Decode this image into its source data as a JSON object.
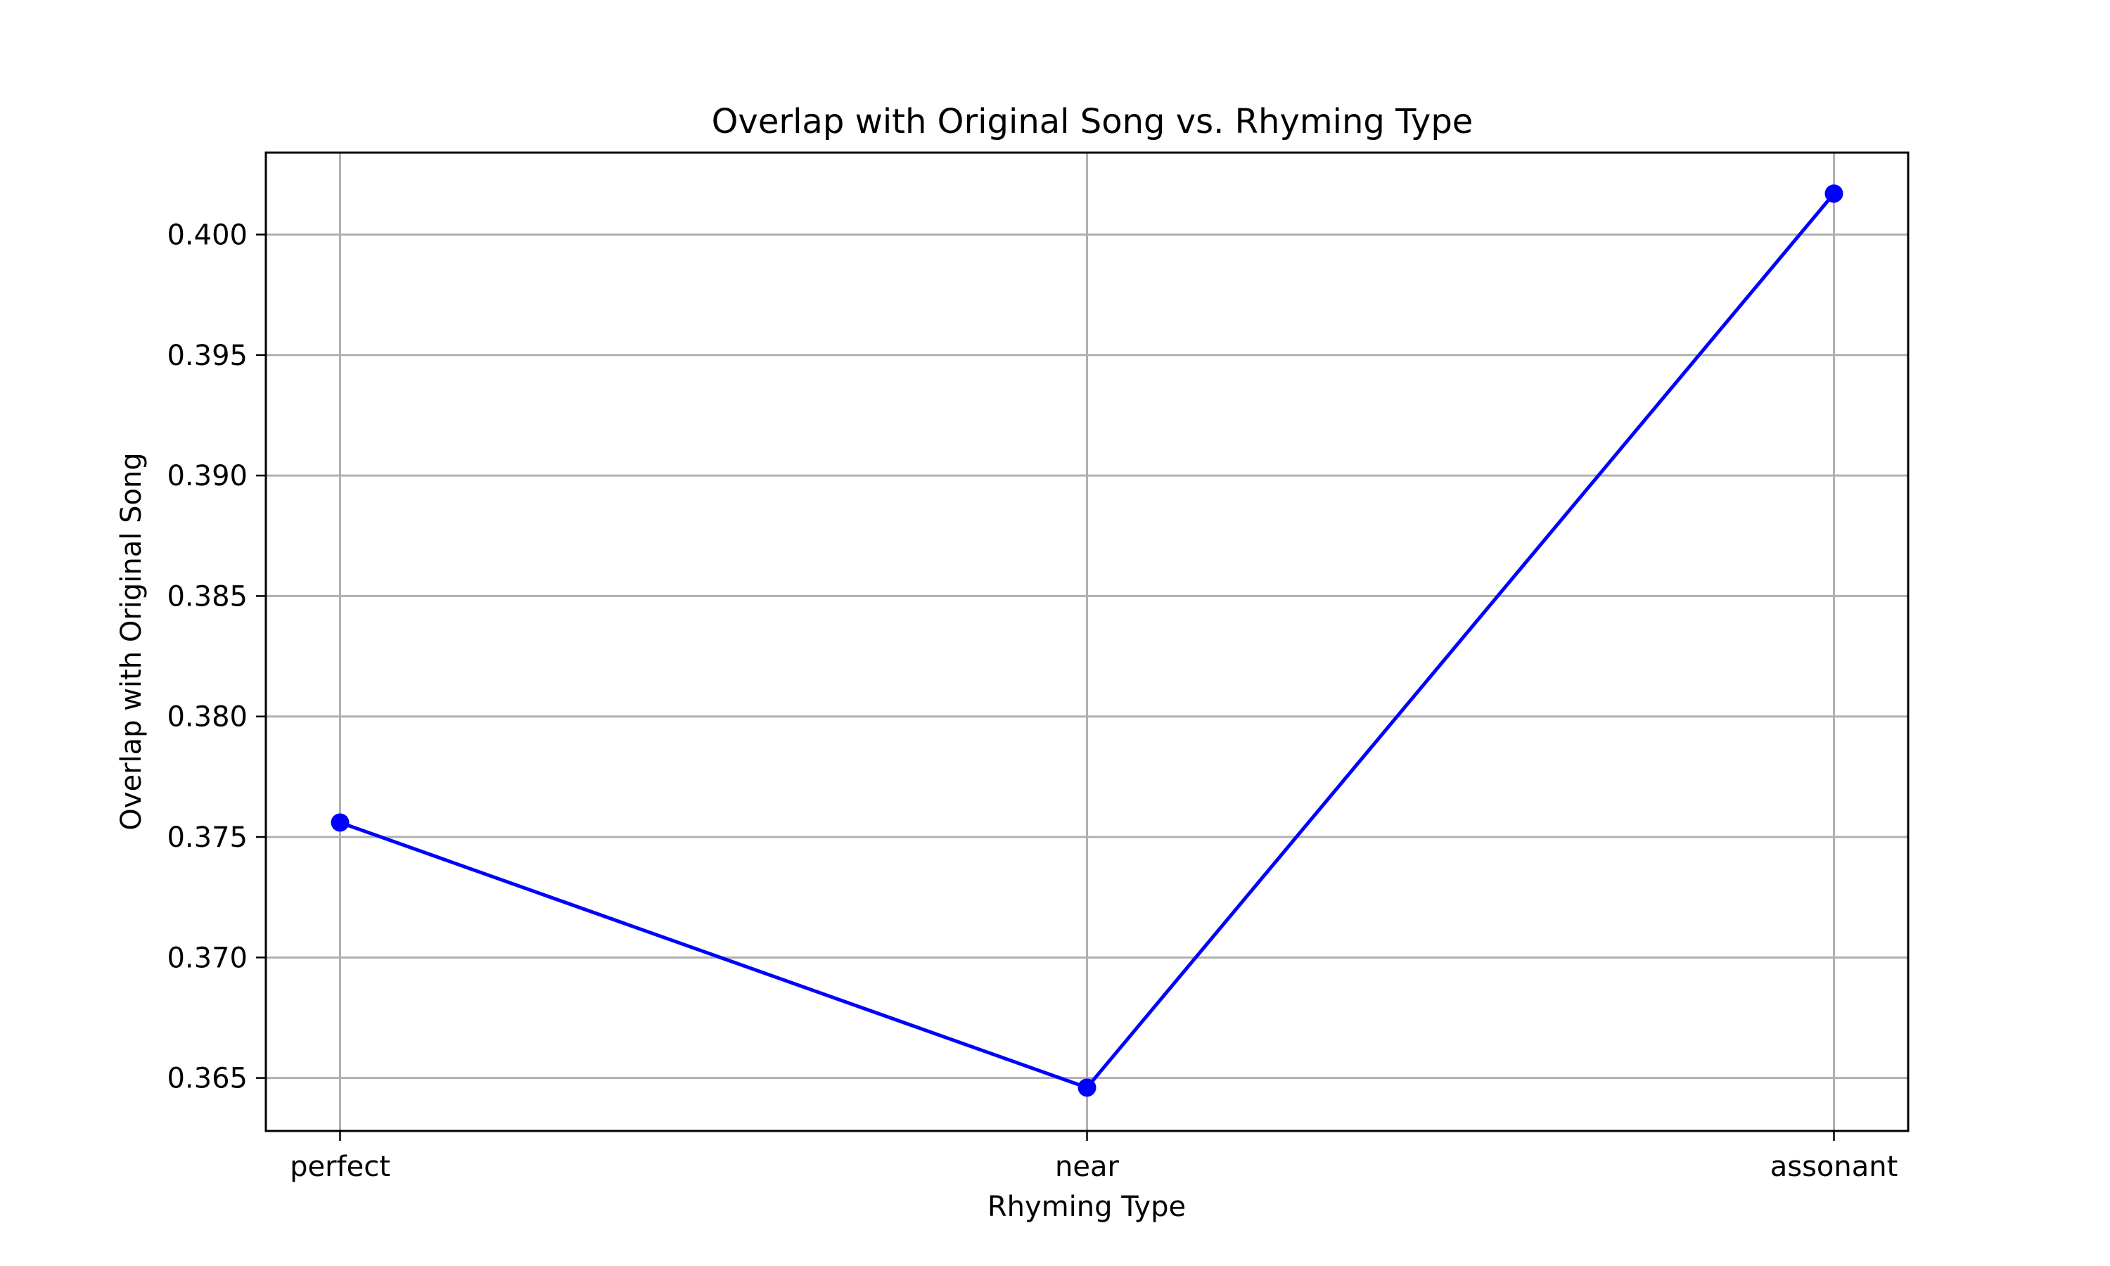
{
  "chart_data": {
    "type": "line",
    "title": "Overlap with Original Song vs. Rhyming Type",
    "xlabel": "Rhyming Type",
    "ylabel": "Overlap with Original Song",
    "categories": [
      "perfect",
      "near",
      "assonant"
    ],
    "series": [
      {
        "values": [
          0.3756,
          0.3646,
          0.4017
        ],
        "color": "#0000ff",
        "marker": "circle"
      }
    ],
    "ylim": [
      0.3628,
      0.4034
    ],
    "yticks": [
      0.365,
      0.37,
      0.375,
      0.38,
      0.385,
      0.39,
      0.395,
      0.4
    ],
    "ytick_labels": [
      "0.365",
      "0.370",
      "0.375",
      "0.380",
      "0.385",
      "0.390",
      "0.395",
      "0.400"
    ],
    "grid": true,
    "legend": "none"
  }
}
